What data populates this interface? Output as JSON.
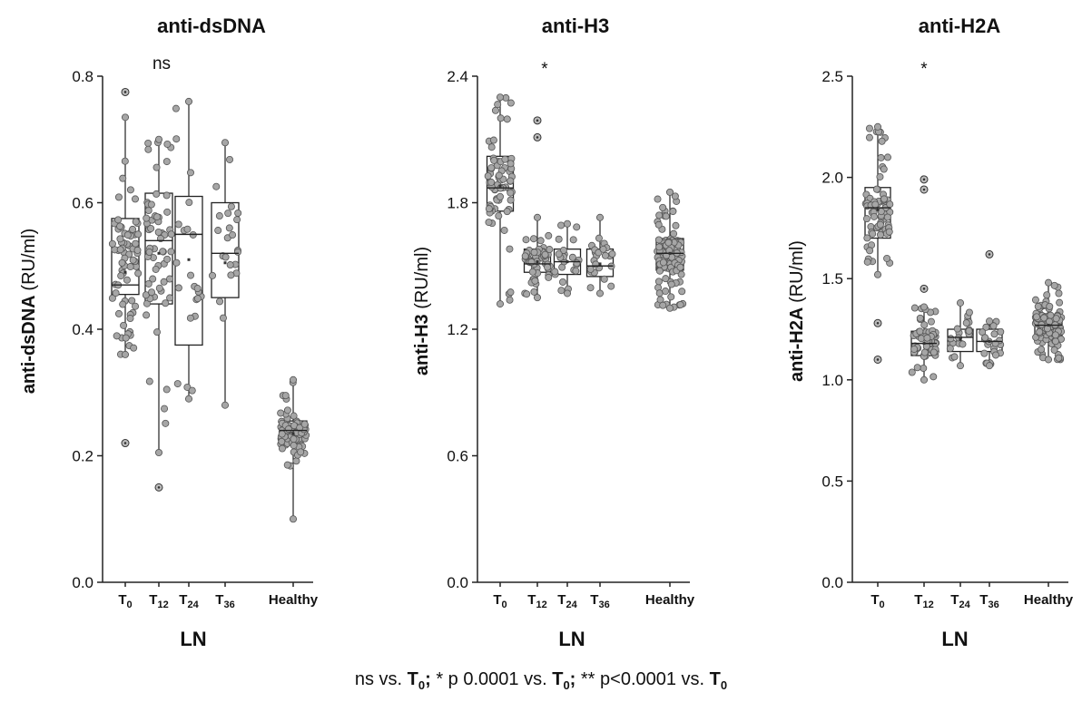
{
  "chart_data": [
    {
      "type": "box",
      "title": "anti-dsDNA",
      "ylabel_bold": "anti-dsDNA",
      "ylabel_unit": "(RU/ml)",
      "xlabel": "LN",
      "ylim": [
        0,
        0.8
      ],
      "yticks": [
        "0.0",
        "0.2",
        "0.4",
        "0.6",
        "0.8"
      ],
      "significance": "ns",
      "categories": [
        {
          "main": "T",
          "sub": "0",
          "q1": 0.455,
          "median": 0.47,
          "q3": 0.575,
          "wlo": 0.36,
          "whi": 0.735,
          "mean": 0.49,
          "n": 70,
          "extras": [
            0.775,
            0.22
          ]
        },
        {
          "main": "T",
          "sub": "12",
          "q1": 0.44,
          "median": 0.54,
          "q3": 0.615,
          "wlo": 0.205,
          "whi": 0.7,
          "mean": 0.52,
          "n": 60,
          "extras": [
            0.15
          ]
        },
        {
          "main": "T",
          "sub": "24",
          "q1": 0.375,
          "median": 0.55,
          "q3": 0.61,
          "wlo": 0.29,
          "whi": 0.76,
          "mean": 0.51,
          "n": 22,
          "extras": []
        },
        {
          "main": "T",
          "sub": "36",
          "q1": 0.45,
          "median": 0.52,
          "q3": 0.6,
          "wlo": 0.28,
          "whi": 0.695,
          "mean": 0.505,
          "n": 22,
          "extras": []
        },
        {
          "main": "Healthy",
          "sub": "",
          "q1": 0.225,
          "median": 0.24,
          "q3": 0.255,
          "wlo": 0.1,
          "whi": 0.32,
          "mean": 0.235,
          "n": 110,
          "extras": []
        }
      ]
    },
    {
      "type": "box",
      "title": "anti-H3",
      "ylabel_bold": "anti-H3",
      "ylabel_unit": "(RU/ml)",
      "xlabel": "LN",
      "ylim": [
        0,
        2.4
      ],
      "yticks": [
        "0.0",
        "0.6",
        "1.2",
        "1.8",
        "2.4"
      ],
      "significance": "*",
      "categories": [
        {
          "main": "T",
          "sub": "0",
          "q1": 1.76,
          "median": 1.87,
          "q3": 2.02,
          "wlo": 1.32,
          "whi": 2.3,
          "mean": 1.88,
          "n": 70,
          "extras": []
        },
        {
          "main": "T",
          "sub": "12",
          "q1": 1.47,
          "median": 1.51,
          "q3": 1.58,
          "wlo": 1.35,
          "whi": 1.73,
          "mean": 1.52,
          "n": 60,
          "extras": [
            2.19,
            2.11
          ]
        },
        {
          "main": "T",
          "sub": "24",
          "q1": 1.46,
          "median": 1.52,
          "q3": 1.58,
          "wlo": 1.37,
          "whi": 1.7,
          "mean": 1.52,
          "n": 22,
          "extras": []
        },
        {
          "main": "T",
          "sub": "36",
          "q1": 1.45,
          "median": 1.5,
          "q3": 1.58,
          "wlo": 1.37,
          "whi": 1.73,
          "mean": 1.51,
          "n": 22,
          "extras": []
        },
        {
          "main": "Healthy",
          "sub": "",
          "q1": 1.48,
          "median": 1.56,
          "q3": 1.63,
          "wlo": 1.3,
          "whi": 1.85,
          "mean": 1.56,
          "n": 120,
          "extras": []
        }
      ]
    },
    {
      "type": "box",
      "title": "anti-H2A",
      "ylabel_bold": "anti-H2A",
      "ylabel_unit": "(RU/ml)",
      "xlabel": "LN",
      "ylim": [
        0,
        2.5
      ],
      "yticks": [
        "0.0",
        "0.5",
        "1.0",
        "1.5",
        "2.0",
        "2.5"
      ],
      "significance": "*",
      "categories": [
        {
          "main": "T",
          "sub": "0",
          "q1": 1.7,
          "median": 1.85,
          "q3": 1.95,
          "wlo": 1.52,
          "whi": 2.25,
          "mean": 1.84,
          "n": 70,
          "extras": [
            1.28,
            1.1
          ]
        },
        {
          "main": "T",
          "sub": "12",
          "q1": 1.12,
          "median": 1.18,
          "q3": 1.24,
          "wlo": 1.0,
          "whi": 1.36,
          "mean": 1.18,
          "n": 60,
          "extras": [
            1.99,
            1.94,
            1.45
          ]
        },
        {
          "main": "T",
          "sub": "24",
          "q1": 1.14,
          "median": 1.21,
          "q3": 1.25,
          "wlo": 1.07,
          "whi": 1.38,
          "mean": 1.2,
          "n": 22,
          "extras": []
        },
        {
          "main": "T",
          "sub": "36",
          "q1": 1.14,
          "median": 1.19,
          "q3": 1.25,
          "wlo": 1.07,
          "whi": 1.29,
          "mean": 1.19,
          "n": 22,
          "extras": [
            1.62
          ]
        },
        {
          "main": "Healthy",
          "sub": "",
          "q1": 1.22,
          "median": 1.27,
          "q3": 1.32,
          "wlo": 1.1,
          "whi": 1.48,
          "mean": 1.27,
          "n": 120,
          "extras": []
        }
      ]
    }
  ],
  "footnote": {
    "parts": [
      {
        "text": "ns vs. ",
        "bold": false
      },
      {
        "text": "T",
        "bold": true,
        "sub": "0"
      },
      {
        "text": "; ",
        "bold": true
      },
      {
        "text": "* p 0.0001 vs. ",
        "bold": false
      },
      {
        "text": "T",
        "bold": true,
        "sub": "0"
      },
      {
        "text": "; ",
        "bold": true
      },
      {
        "text": "** p<0.0001 vs. ",
        "bold": false
      },
      {
        "text": "T",
        "bold": true,
        "sub": "0"
      }
    ]
  }
}
